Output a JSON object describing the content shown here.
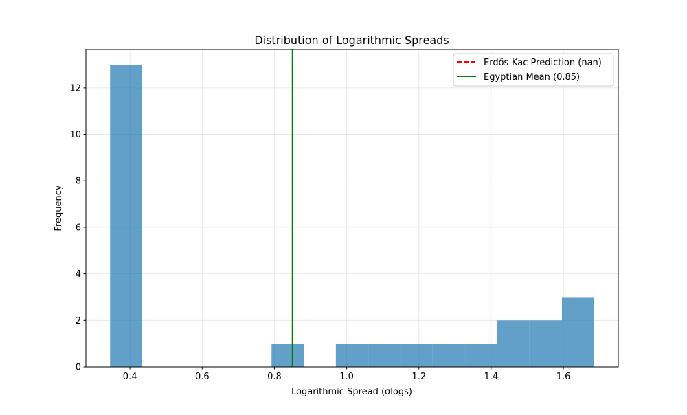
{
  "chart_data": {
    "type": "bar",
    "title": "Distribution of Logarithmic Spreads",
    "xlabel": "Logarithmic Spread (σlogs)",
    "ylabel": "Frequency",
    "xlim": [
      0.278,
      1.752
    ],
    "ylim": [
      0,
      13.65
    ],
    "grid": true,
    "bin_edges": [
      0.345,
      0.434,
      0.524,
      0.613,
      0.702,
      0.792,
      0.881,
      0.97,
      1.06,
      1.149,
      1.238,
      1.328,
      1.417,
      1.506,
      1.596,
      1.685
    ],
    "counts": [
      13,
      0,
      0,
      0,
      0,
      1,
      0,
      1,
      1,
      1,
      1,
      1,
      2,
      2,
      3
    ],
    "bar_color": "#1f77b4",
    "bar_alpha": 0.7,
    "xticks": [
      0.4,
      0.6,
      0.8,
      1.0,
      1.2,
      1.4,
      1.6
    ],
    "xtick_labels": [
      "0.4",
      "0.6",
      "0.8",
      "1.0",
      "1.2",
      "1.4",
      "1.6"
    ],
    "yticks": [
      0,
      2,
      4,
      6,
      8,
      10,
      12
    ],
    "ytick_labels": [
      "0",
      "2",
      "4",
      "6",
      "8",
      "10",
      "12"
    ],
    "vlines": [
      {
        "name": "egyptian-mean-line",
        "x": 0.85,
        "color": "#008000",
        "style": "solid"
      }
    ],
    "legend": {
      "placement": "top-right",
      "entries": [
        {
          "label": "Erdős-Kac Prediction (nan)",
          "color": "#ff0000",
          "style": "dashed"
        },
        {
          "label": "Egyptian Mean (0.85)",
          "color": "#008000",
          "style": "solid"
        }
      ]
    }
  }
}
